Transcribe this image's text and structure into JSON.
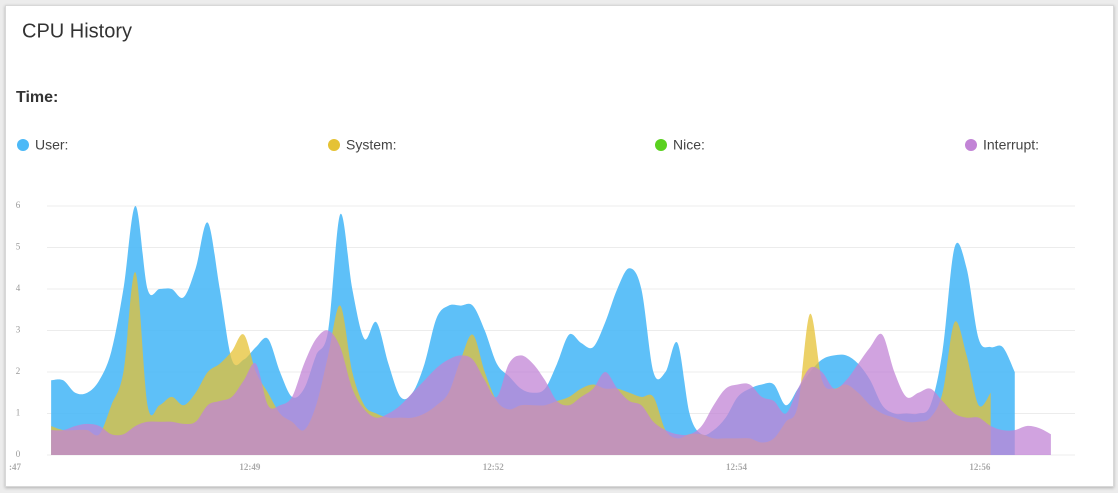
{
  "chart_data": {
    "type": "area",
    "title": "CPU History",
    "time_label": "Time:",
    "x": [
      3,
      4,
      5,
      6,
      7,
      8,
      9,
      10,
      11,
      12,
      13,
      14,
      15,
      16,
      17,
      18,
      19,
      20,
      21,
      22,
      23,
      24,
      25,
      26,
      27,
      28,
      29,
      30,
      31,
      32,
      33,
      34,
      35,
      36,
      37,
      38,
      39,
      40,
      41,
      42,
      43,
      44,
      45,
      46,
      47,
      48,
      49,
      50,
      51,
      52,
      53,
      54,
      55,
      56,
      57,
      58,
      59,
      60,
      61,
      62,
      63,
      64,
      65,
      66,
      67,
      68,
      69,
      70,
      71,
      72,
      73,
      74,
      75,
      76,
      77,
      78,
      79,
      80,
      81,
      82,
      83,
      84,
      85,
      86
    ],
    "series": [
      {
        "name": "User:",
        "color": "#4cb9f7",
        "values": [
          1.8,
          1.8,
          1.5,
          1.5,
          1.8,
          2.5,
          4.0,
          6.0,
          4.0,
          4.0,
          4.0,
          3.8,
          4.5,
          5.6,
          4.0,
          2.3,
          2.3,
          2.6,
          2.8,
          2.0,
          1.4,
          1.6,
          2.4,
          3.0,
          5.8,
          4.0,
          2.8,
          3.2,
          2.2,
          1.4,
          1.5,
          2.2,
          3.3,
          3.6,
          3.6,
          3.6,
          3.0,
          2.2,
          1.9,
          1.6,
          1.5,
          1.6,
          2.2,
          2.9,
          2.7,
          2.6,
          3.2,
          4.0,
          4.5,
          4.0,
          2.0,
          2.0,
          2.7,
          1.0,
          0.5,
          0.6,
          0.9,
          1.4,
          1.6,
          1.7,
          1.7,
          1.2,
          1.6,
          2.0,
          2.3,
          2.4,
          2.4,
          2.2,
          1.8,
          1.2,
          1.0,
          1.0,
          1.0,
          1.2,
          2.5,
          5.0,
          4.5,
          2.8,
          2.6,
          2.6,
          2.0,
          null,
          null,
          null
        ]
      },
      {
        "name": "System:",
        "color": "#e5c234",
        "values": [
          0.7,
          0.6,
          0.6,
          0.6,
          0.5,
          1.2,
          2.0,
          4.4,
          1.2,
          1.2,
          1.4,
          1.2,
          1.5,
          2.0,
          2.2,
          2.5,
          2.9,
          2.0,
          1.5,
          1.0,
          0.8,
          0.6,
          1.2,
          2.4,
          3.6,
          2.0,
          1.2,
          1.0,
          0.9,
          0.9,
          0.9,
          1.0,
          1.2,
          1.5,
          2.3,
          2.9,
          2.0,
          1.3,
          1.1,
          1.2,
          1.2,
          1.2,
          1.3,
          1.4,
          1.6,
          1.7,
          1.6,
          1.6,
          1.5,
          1.4,
          1.4,
          0.6,
          0.4,
          0.5,
          0.5,
          0.4,
          0.4,
          0.4,
          0.4,
          0.3,
          0.4,
          0.8,
          1.2,
          3.4,
          1.8,
          1.6,
          1.7,
          1.5,
          1.2,
          1.0,
          0.9,
          0.8,
          0.8,
          0.9,
          1.5,
          3.2,
          2.4,
          1.2,
          1.5,
          null,
          null,
          null,
          null,
          null
        ]
      },
      {
        "name": "Nice:",
        "color": "#5ad11f",
        "values": [
          0,
          0,
          0,
          0,
          0,
          0,
          0,
          0,
          0,
          0,
          0,
          0,
          0,
          0,
          0,
          0,
          0,
          0,
          0,
          0,
          0,
          0,
          0,
          0,
          0,
          0,
          0,
          0,
          0,
          0,
          0,
          0,
          0,
          0,
          0,
          0,
          0,
          0,
          0,
          0,
          0,
          0,
          0,
          0,
          0,
          0,
          0,
          0,
          0,
          0,
          0,
          0,
          0,
          0,
          0,
          0,
          0,
          0,
          0,
          0,
          0,
          0,
          0,
          0,
          0,
          0,
          0,
          0,
          0,
          0,
          0,
          0,
          0,
          0,
          0,
          0,
          0,
          0,
          0,
          0,
          0,
          null,
          null,
          null
        ]
      },
      {
        "name": "Interrupt:",
        "color": "#c284d6",
        "values": [
          0.6,
          0.6,
          0.7,
          0.75,
          0.7,
          0.5,
          0.5,
          0.7,
          0.8,
          0.8,
          0.8,
          0.75,
          0.8,
          1.2,
          1.3,
          1.4,
          1.8,
          2.2,
          1.2,
          1.2,
          1.4,
          2.2,
          2.8,
          3.0,
          2.6,
          1.6,
          1.1,
          0.9,
          1.0,
          1.2,
          1.5,
          1.8,
          2.1,
          2.3,
          2.4,
          2.3,
          1.8,
          1.4,
          2.2,
          2.4,
          2.2,
          1.8,
          1.3,
          1.2,
          1.4,
          1.6,
          2.0,
          1.6,
          1.3,
          1.2,
          0.8,
          0.6,
          0.5,
          0.5,
          0.7,
          1.2,
          1.6,
          1.7,
          1.7,
          1.4,
          1.3,
          1.0,
          1.6,
          2.1,
          2.0,
          1.6,
          1.8,
          2.2,
          2.6,
          2.9,
          2.0,
          1.4,
          1.5,
          1.6,
          1.3,
          1.0,
          0.9,
          0.9,
          0.7,
          0.6,
          0.6,
          0.7,
          0.65,
          0.5
        ]
      }
    ],
    "xlim": [
      0,
      88
    ],
    "xticks": [
      {
        "value": 0,
        "label": ":47"
      },
      {
        "value": 19.5,
        "label": "12:49"
      },
      {
        "value": 39.7,
        "label": "12:52"
      },
      {
        "value": 59.9,
        "label": "12:54"
      },
      {
        "value": 80.1,
        "label": "12:56"
      }
    ],
    "ylim": [
      0,
      6
    ],
    "yticks": [
      0,
      1,
      2,
      3,
      4,
      5,
      6
    ],
    "grid": true
  }
}
